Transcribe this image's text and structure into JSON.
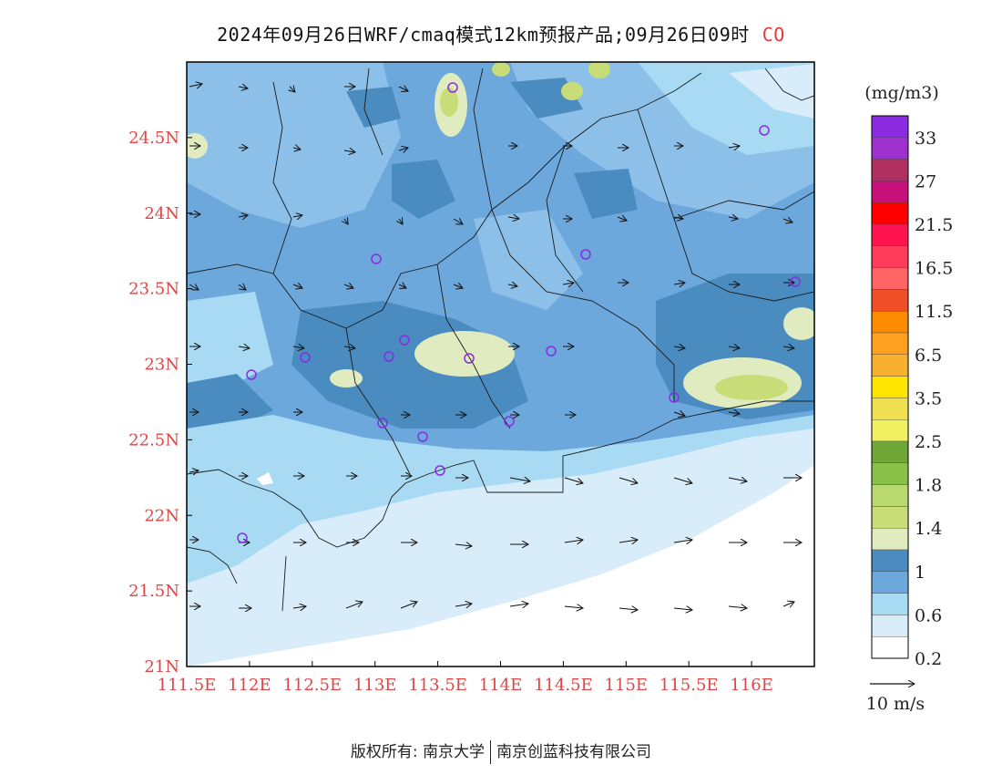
{
  "header": {
    "title": "2024年09月26日WRF/cmaq模式12km预报产品;09月26日09时",
    "pollutant": "CO",
    "pollutant_color": "#e23a3a"
  },
  "map": {
    "lon_ticks": [
      "111.5E",
      "112E",
      "112.5E",
      "113E",
      "113.5E",
      "114E",
      "114.5E",
      "115E",
      "115.5E",
      "116E"
    ],
    "lat_ticks": [
      "24.5N",
      "24N",
      "23.5N",
      "23N",
      "22.5N",
      "22N",
      "21.5N",
      "21N"
    ],
    "tick_color": "#e04545",
    "lon_range": [
      111.5,
      116.5
    ],
    "lat_range": [
      21.0,
      25.0
    ]
  },
  "colorbar": {
    "unit": "(mg/m3)",
    "labels": [
      "33",
      "27",
      "21.5",
      "16.5",
      "11.5",
      "6.5",
      "3.5",
      "2.5",
      "1.8",
      "1.4",
      "1",
      "0.6",
      "0.2"
    ],
    "colors": [
      "#8b2be2",
      "#a02fd0",
      "#b03060",
      "#c8107a",
      "#ff0000",
      "#ff1450",
      "#ff3c5a",
      "#ff6464",
      "#f05028",
      "#ff8c00",
      "#ffa020",
      "#f8b030",
      "#ffe600",
      "#f0e050",
      "#f0f060",
      "#70a838",
      "#88c048",
      "#b8d870",
      "#c8dc78",
      "#e0ecc0",
      "#4a8cc0",
      "#6ca8dc",
      "#a8daf4",
      "#d8ecfa",
      "#ffffff"
    ]
  },
  "wind_scale": {
    "label": "10 m/s"
  },
  "footer": {
    "copyright": "版权所有: 南京大学",
    "company": "南京创蓝科技有限公司"
  }
}
